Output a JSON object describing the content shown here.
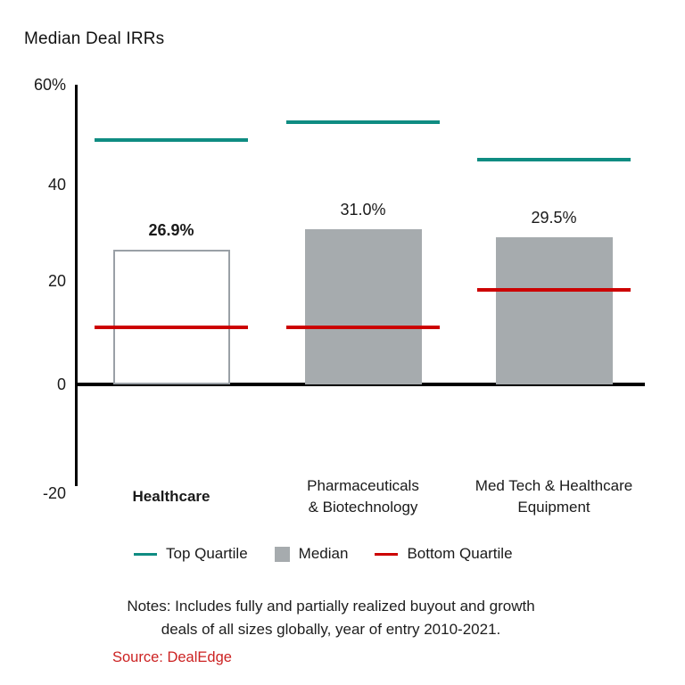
{
  "title": "Median Deal IRRs",
  "chart_data": {
    "type": "bar",
    "title": "Median Deal IRRs",
    "ylim": [
      -20,
      60
    ],
    "grid": false,
    "legend_position": "bottom",
    "y_ticks": [
      {
        "label": "60%",
        "value": 60
      },
      {
        "label": "40",
        "value": 40
      },
      {
        "label": "20",
        "value": 20
      },
      {
        "label": "0",
        "value": 0
      },
      {
        "label": "-20",
        "value": -20
      }
    ],
    "groups": [
      {
        "category_lines": [
          "Healthcare"
        ],
        "category_bold": true,
        "median": 26.9,
        "median_label": "26.9%",
        "median_label_bold": true,
        "bar_style": "hollow",
        "top_quartile": 49.0,
        "bottom_quartile": 11.5
      },
      {
        "category_lines": [
          "Pharmaceuticals",
          "& Biotechnology"
        ],
        "category_bold": false,
        "median": 31.0,
        "median_label": "31.0%",
        "median_label_bold": false,
        "bar_style": "filled",
        "top_quartile": 52.5,
        "bottom_quartile": 11.5
      },
      {
        "category_lines": [
          "Med Tech & Healthcare",
          "Equipment"
        ],
        "category_bold": false,
        "median": 29.5,
        "median_label": "29.5%",
        "median_label_bold": false,
        "bar_style": "filled",
        "top_quartile": 45.0,
        "bottom_quartile": 19.0
      }
    ],
    "legend": [
      {
        "label": "Top Quartile",
        "marker": "line",
        "color": "#0f8c82"
      },
      {
        "label": "Median",
        "marker": "square",
        "color": "#a6abae"
      },
      {
        "label": "Bottom Quartile",
        "marker": "line",
        "color": "#cc0000"
      }
    ]
  },
  "colors": {
    "top_quartile": "#0f8c82",
    "bottom_quartile": "#cc0000",
    "median_fill": "#a6abae",
    "hollow_border": "#9aa0a6",
    "axis": "#000000",
    "source_red": "#cc2222"
  },
  "notes": {
    "lines": [
      "Notes: Includes fully and partially realized buyout and growth",
      "deals of all sizes globally, year of entry 2010-2021."
    ]
  },
  "source": {
    "text": "Source: DealEdge"
  }
}
